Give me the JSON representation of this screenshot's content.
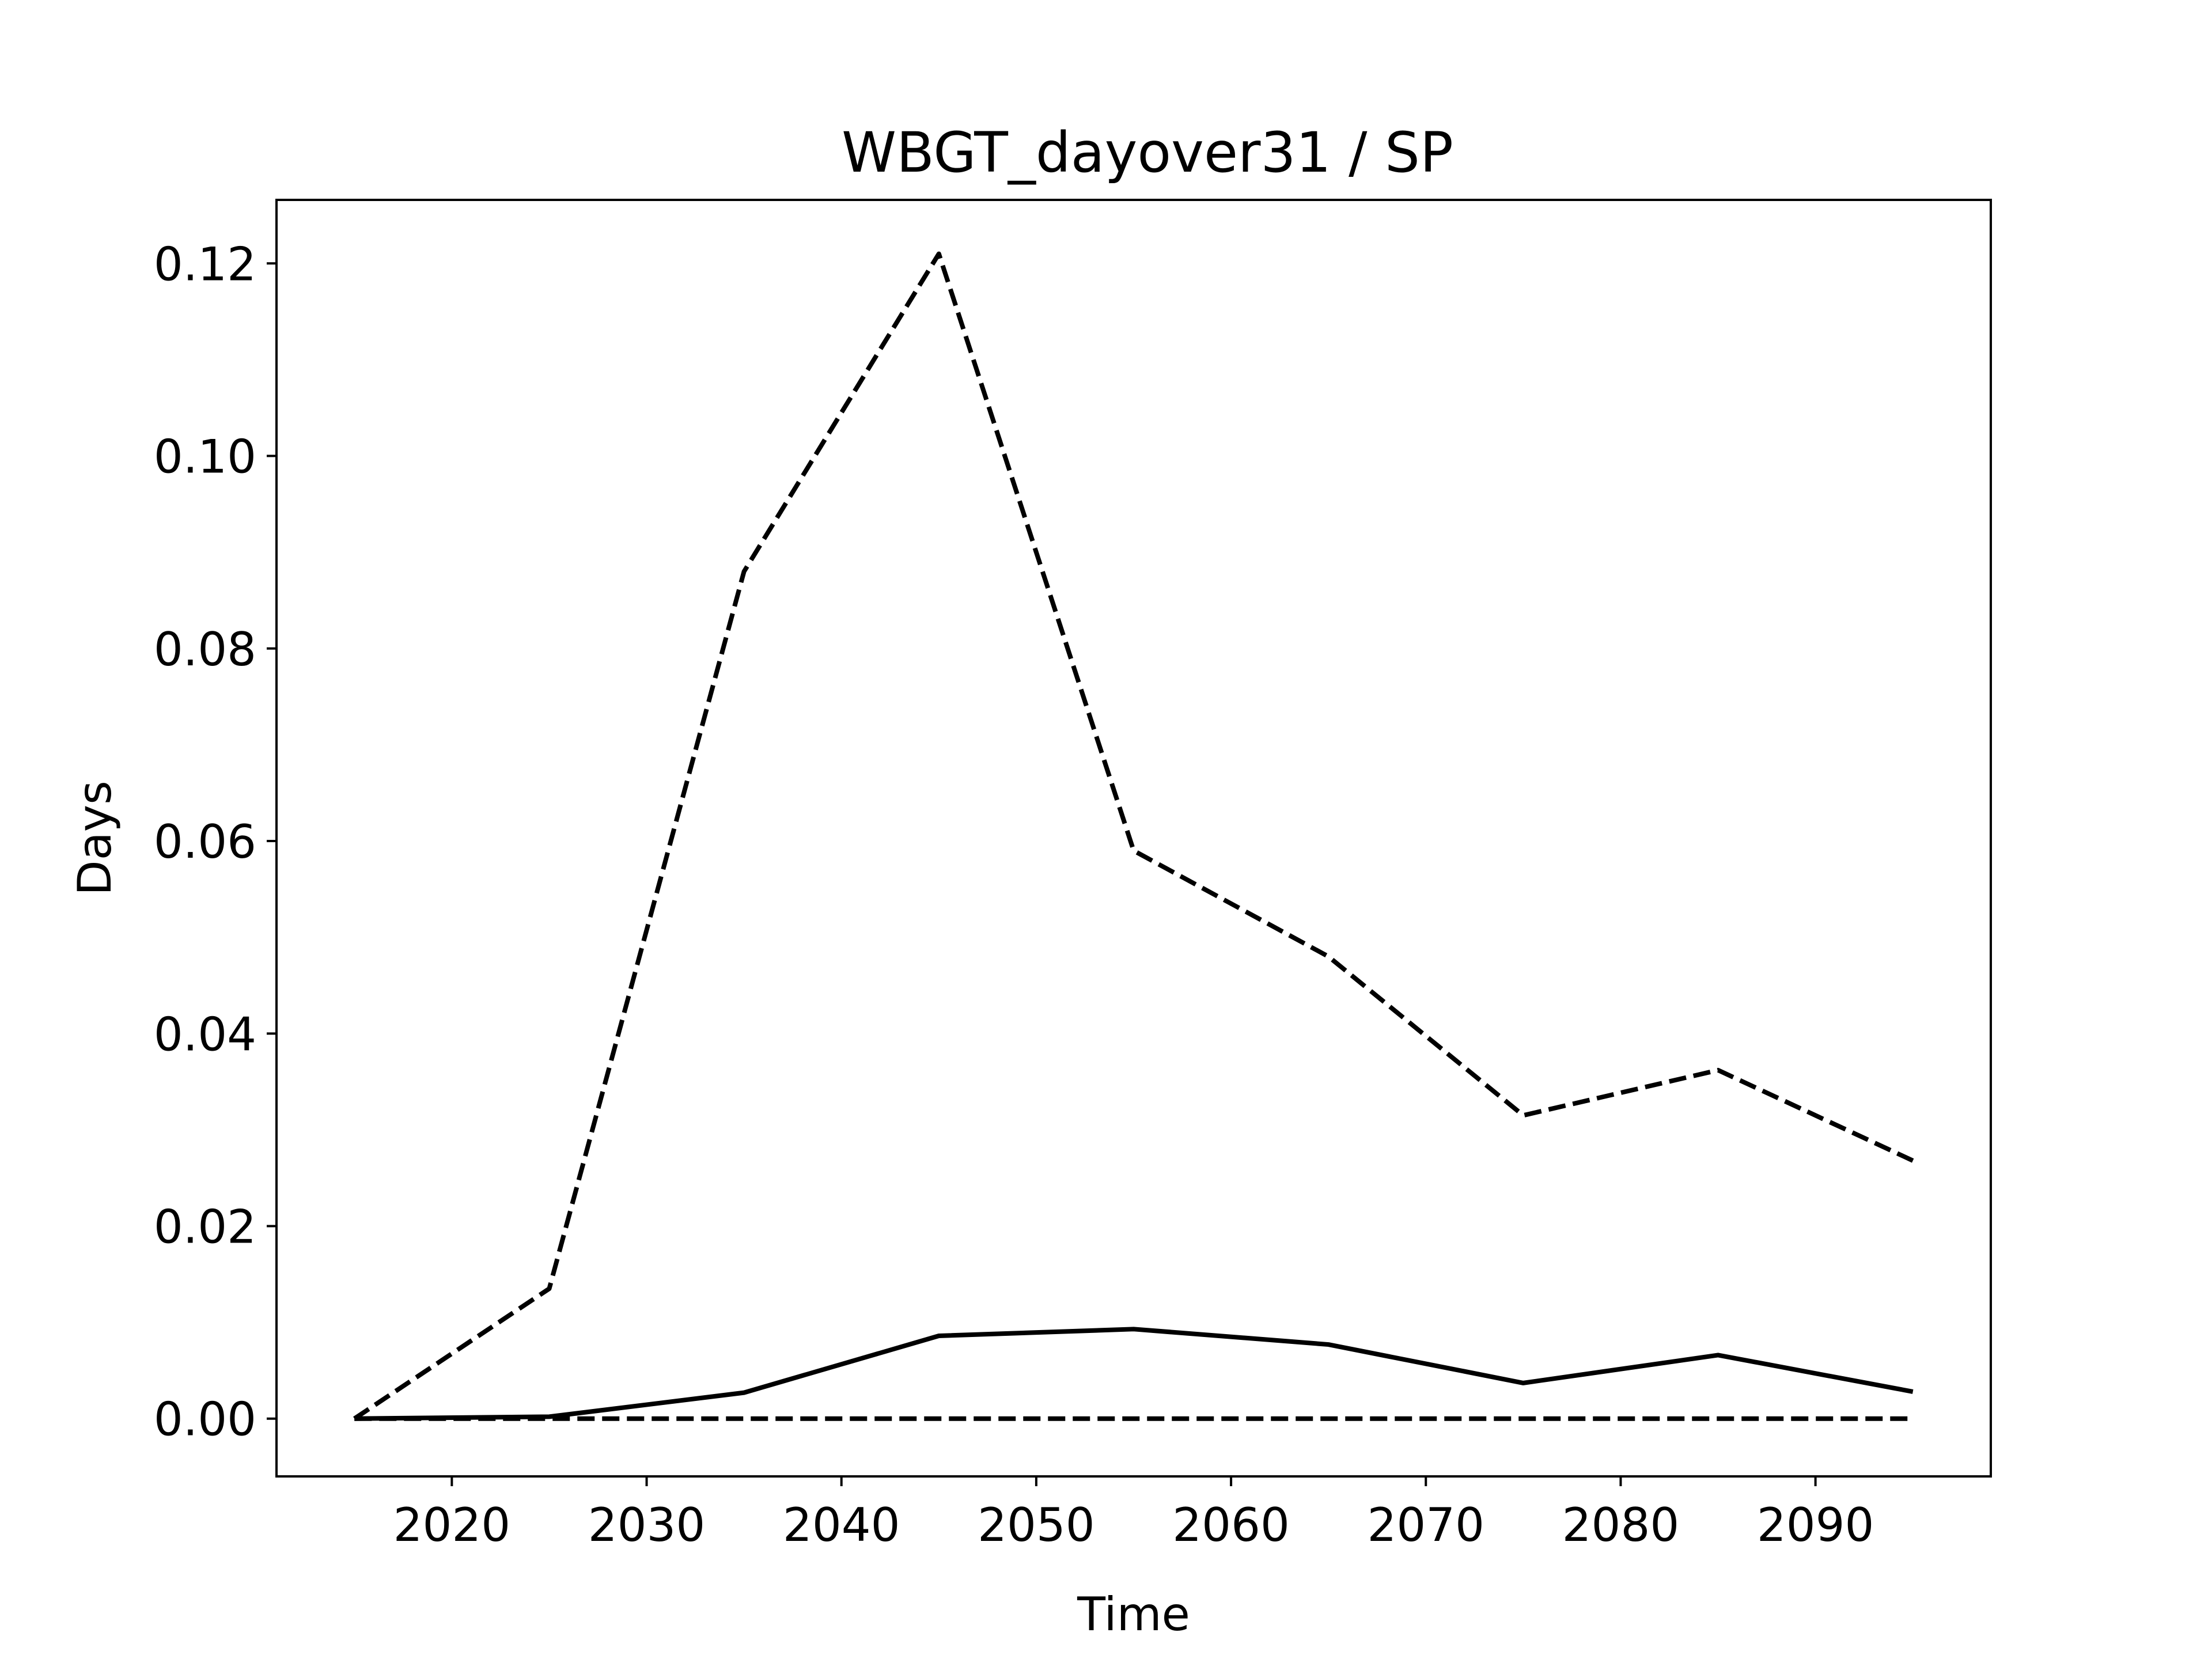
{
  "chart_data": {
    "type": "line",
    "title": "WBGT_dayover31 / SP",
    "xlabel": "Time",
    "ylabel": "Days",
    "x": [
      2015,
      2025,
      2035,
      2045,
      2055,
      2065,
      2075,
      2085,
      2095
    ],
    "xlim": [
      2011,
      2099
    ],
    "ylim": [
      -0.006,
      0.1266
    ],
    "x_ticks": [
      2020,
      2030,
      2040,
      2050,
      2060,
      2070,
      2080,
      2090
    ],
    "x_tick_labels": [
      "2020",
      "2030",
      "2040",
      "2050",
      "2060",
      "2070",
      "2080",
      "2090"
    ],
    "y_ticks": [
      0.0,
      0.02,
      0.04,
      0.06,
      0.08,
      0.1,
      0.12
    ],
    "y_tick_labels": [
      "0.00",
      "0.02",
      "0.04",
      "0.06",
      "0.08",
      "0.10",
      "0.12"
    ],
    "grid": false,
    "legend": "none",
    "series": [
      {
        "style": "solid",
        "color": "#000000",
        "values": [
          0.0,
          0.0002,
          0.0027,
          0.0086,
          0.0093,
          0.0077,
          0.0037,
          0.0066,
          0.0028
        ]
      },
      {
        "style": "dashed",
        "color": "#000000",
        "values": [
          0.0,
          0.0135,
          0.088,
          0.121,
          0.059,
          0.048,
          0.0315,
          0.0362,
          0.0268
        ]
      },
      {
        "style": "dashed",
        "color": "#000000",
        "values": [
          0.0,
          0.0,
          0.0,
          0.0,
          0.0,
          0.0,
          0.0,
          0.0,
          0.0
        ]
      }
    ]
  }
}
